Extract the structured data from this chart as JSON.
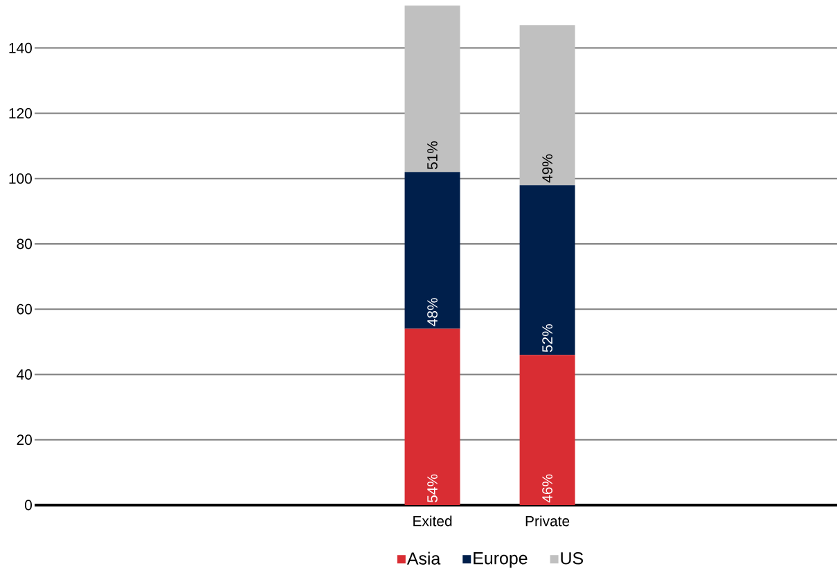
{
  "chart_data": {
    "type": "bar",
    "stacked": true,
    "categories": [
      "Exited",
      "Private"
    ],
    "series": [
      {
        "name": "Asia",
        "color": "#d92d33",
        "values": [
          54,
          46
        ],
        "value_labels": [
          "54%",
          "46%"
        ]
      },
      {
        "name": "Europe",
        "color": "#001f4b",
        "values": [
          48,
          52
        ],
        "value_labels": [
          "48%",
          "52%"
        ]
      },
      {
        "name": "US",
        "color": "#c0c0c0",
        "values": [
          51,
          49
        ],
        "value_labels": [
          "51%",
          "49%"
        ]
      }
    ],
    "ylim": [
      0,
      153
    ],
    "yticks": [
      0,
      20,
      40,
      60,
      80,
      100,
      120,
      140
    ],
    "grid": "y",
    "legend": "bottom"
  }
}
